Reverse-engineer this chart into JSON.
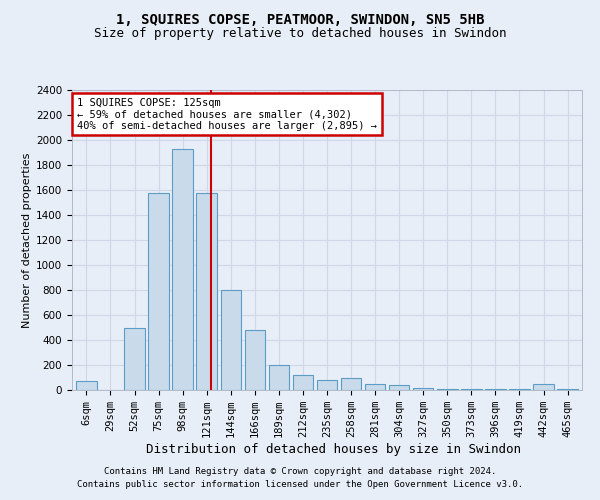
{
  "title1": "1, SQUIRES COPSE, PEATMOOR, SWINDON, SN5 5HB",
  "title2": "Size of property relative to detached houses in Swindon",
  "xlabel": "Distribution of detached houses by size in Swindon",
  "ylabel": "Number of detached properties",
  "footer1": "Contains HM Land Registry data © Crown copyright and database right 2024.",
  "footer2": "Contains public sector information licensed under the Open Government Licence v3.0.",
  "categories": [
    "6sqm",
    "29sqm",
    "52sqm",
    "75sqm",
    "98sqm",
    "121sqm",
    "144sqm",
    "166sqm",
    "189sqm",
    "212sqm",
    "235sqm",
    "258sqm",
    "281sqm",
    "304sqm",
    "327sqm",
    "350sqm",
    "373sqm",
    "396sqm",
    "419sqm",
    "442sqm",
    "465sqm"
  ],
  "values": [
    75,
    0,
    500,
    1575,
    1925,
    1575,
    800,
    480,
    200,
    120,
    80,
    100,
    50,
    40,
    15,
    10,
    5,
    5,
    5,
    50,
    5
  ],
  "bar_color": "#c9daea",
  "bar_edge_color": "#5b9dc9",
  "vline_color": "#cc0000",
  "vline_x_idx": 5.18,
  "grid_color": "#d0d8e8",
  "ylim_max": 2400,
  "ytick_step": 200,
  "bg_color": "#e8eef7",
  "annotation_text_line1": "1 SQUIRES COPSE: 125sqm",
  "annotation_text_line2": "← 59% of detached houses are smaller (4,302)",
  "annotation_text_line3": "40% of semi-detached houses are larger (2,895) →",
  "annotation_box_facecolor": "#ffffff",
  "annotation_box_edgecolor": "#cc0000",
  "title1_fontsize": 10,
  "title2_fontsize": 9,
  "tick_fontsize": 7.5,
  "ylabel_fontsize": 8,
  "xlabel_fontsize": 9
}
